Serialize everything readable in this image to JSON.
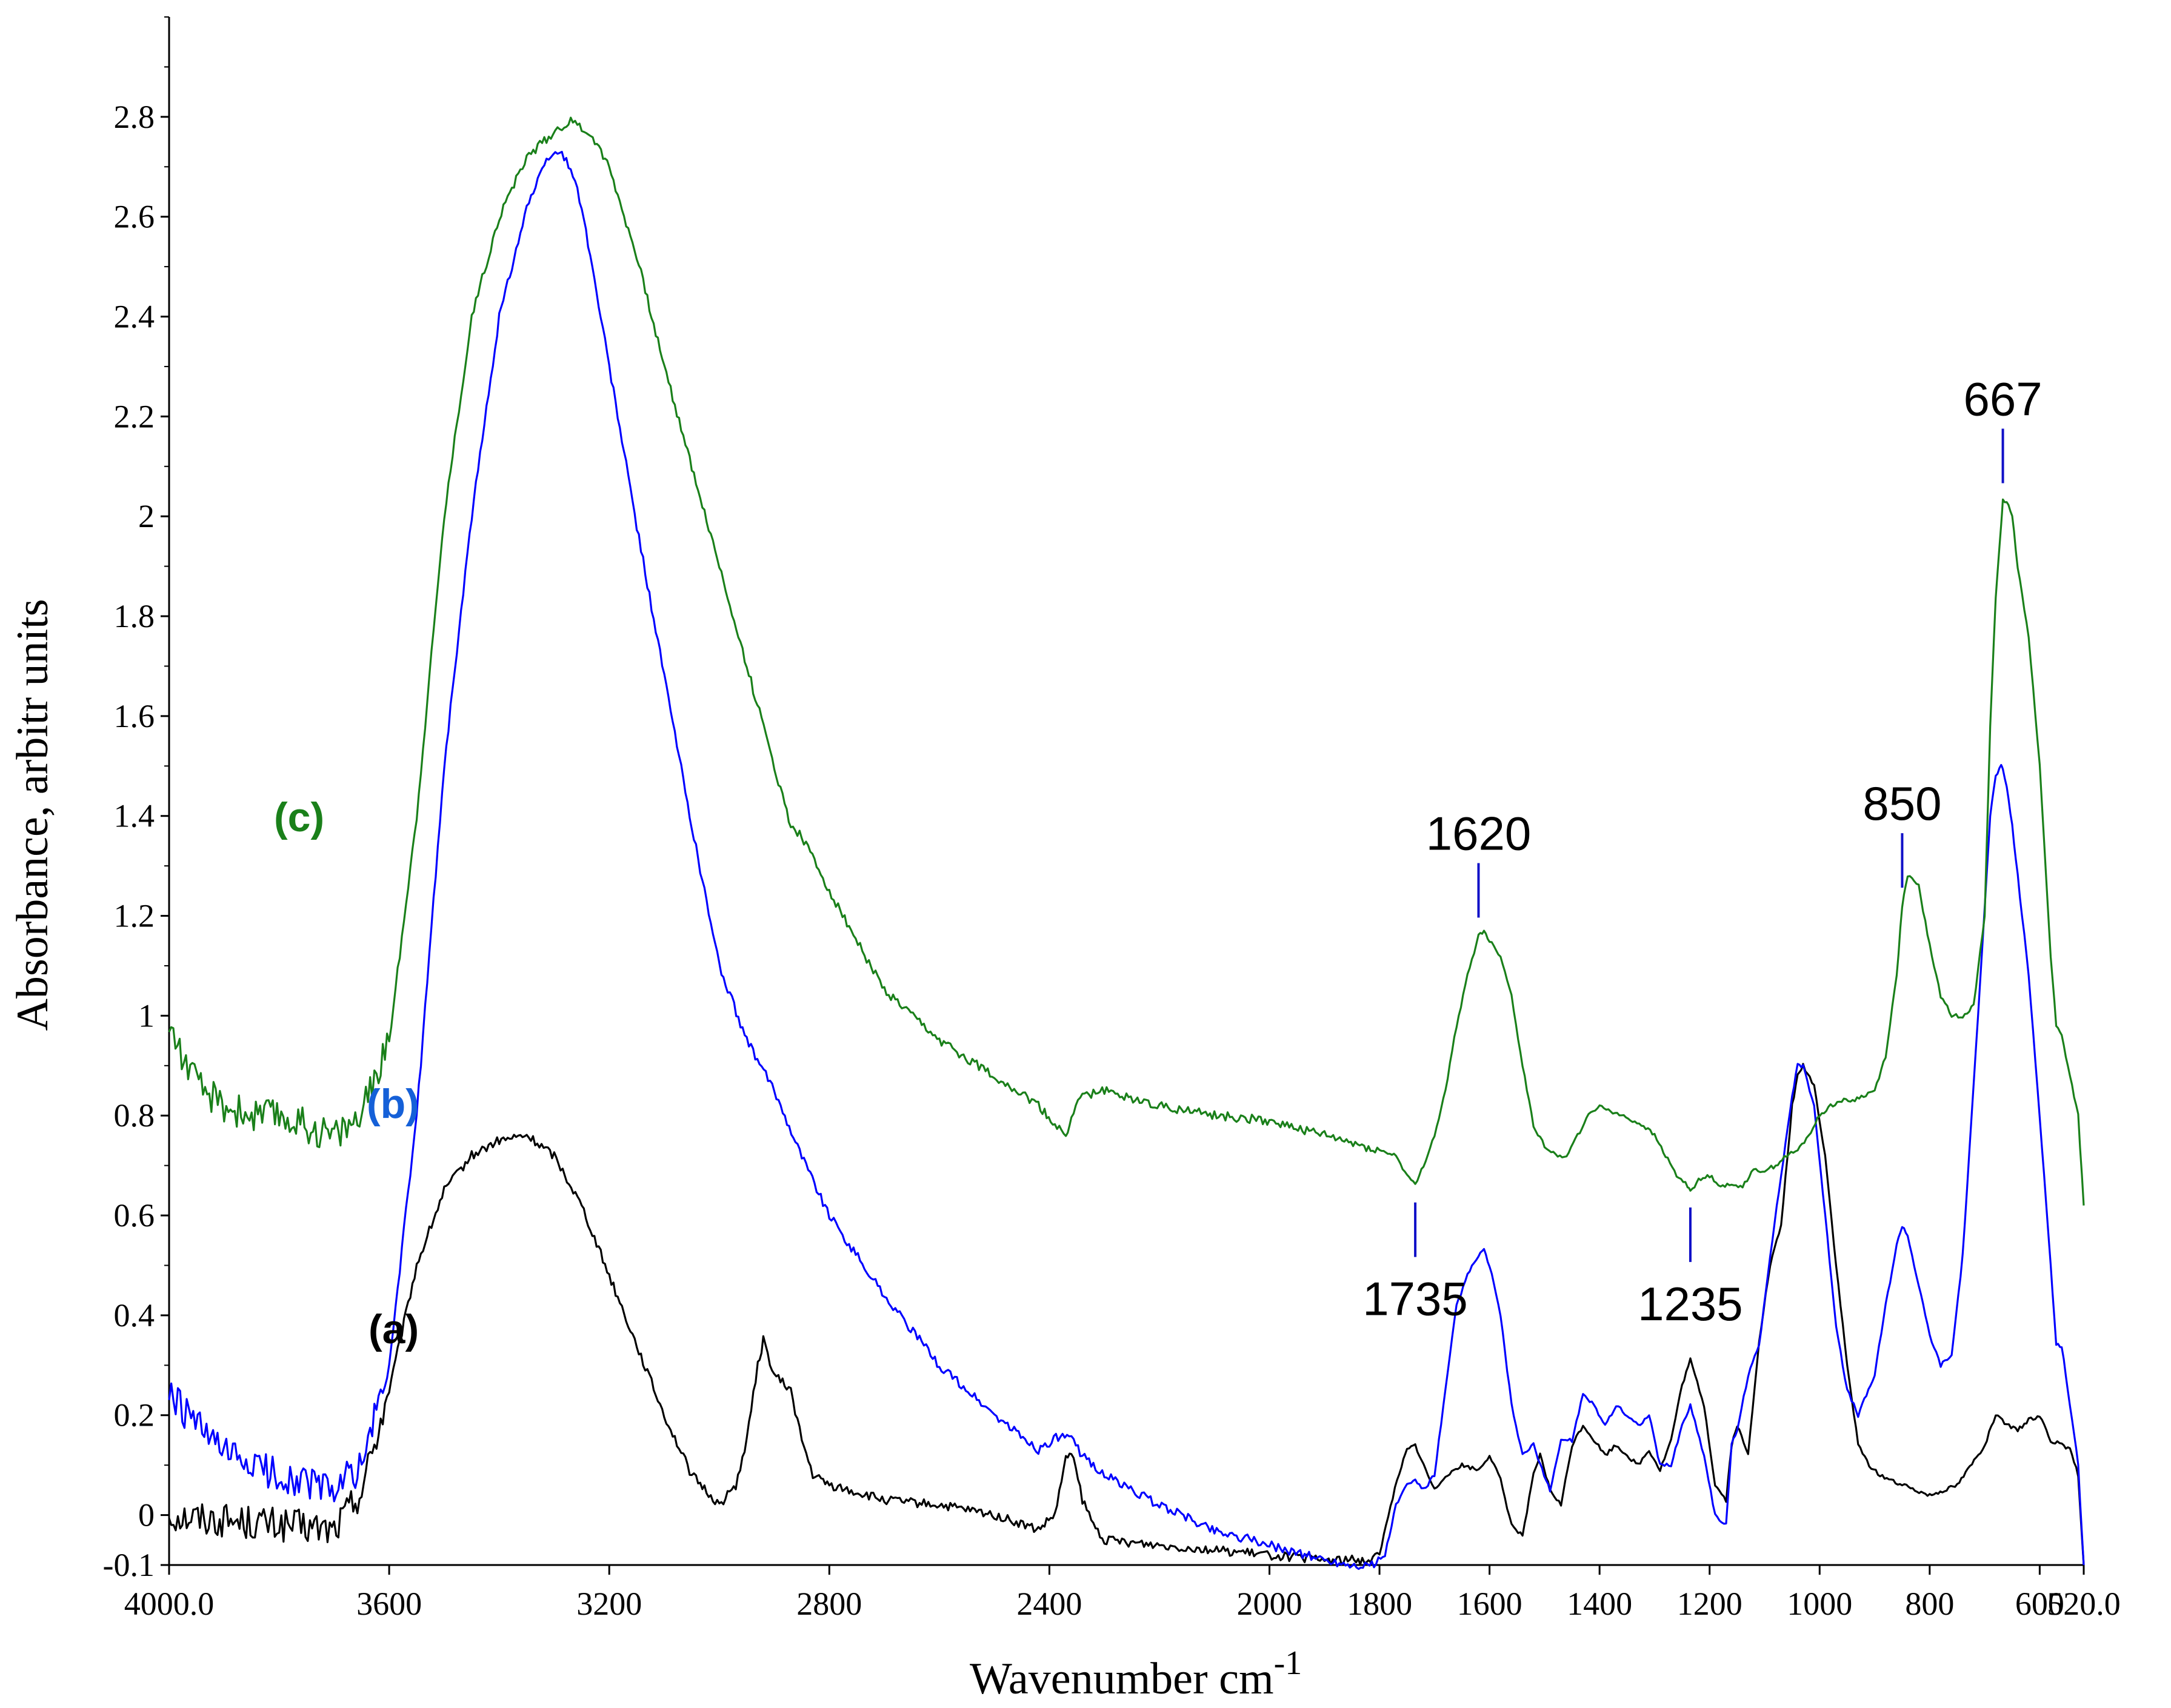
{
  "chart_data": {
    "type": "line",
    "title": "",
    "xlabel": "Wavenumber cm",
    "xlabel_superscript": "-1",
    "ylabel": "Absorbance, arbitr units",
    "xlim": [
      4000,
      520
    ],
    "ylim": [
      -0.1,
      3.0
    ],
    "x_reversed": true,
    "x_ticks": [
      4000,
      3600,
      3200,
      2800,
      2400,
      2000,
      1800,
      1600,
      1400,
      1200,
      1000,
      800,
      600,
      520
    ],
    "x_tick_labels": [
      "4000.0",
      "3600",
      "3200",
      "2800",
      "2400",
      "2000",
      "1800",
      "1600",
      "1400",
      "1200",
      "1000",
      "800",
      "600",
      "520.0"
    ],
    "y_ticks": [
      -0.1,
      0,
      0.2,
      0.4,
      0.6,
      0.8,
      1,
      1.2,
      1.4,
      1.6,
      1.8,
      2,
      2.2,
      2.4,
      2.6,
      2.8
    ],
    "y_tick_labels": [
      "-0.1",
      "0",
      "0.2",
      "0.4",
      "0.6",
      "0.8",
      "1",
      "1.2",
      "1.4",
      "1.6",
      "1.8",
      "2",
      "2.2",
      "2.4",
      "2.6",
      "2.8"
    ],
    "grid": false,
    "series": [
      {
        "name": "(a)",
        "color": "#000000",
        "x": [
          4000,
          3900,
          3800,
          3700,
          3650,
          3600,
          3550,
          3500,
          3450,
          3400,
          3350,
          3300,
          3250,
          3200,
          3150,
          3100,
          3050,
          3000,
          2970,
          2950,
          2930,
          2920,
          2900,
          2870,
          2850,
          2830,
          2800,
          2700,
          2600,
          2500,
          2420,
          2390,
          2370,
          2360,
          2340,
          2320,
          2300,
          2200,
          2100,
          2000,
          1900,
          1850,
          1820,
          1800,
          1780,
          1760,
          1750,
          1735,
          1720,
          1700,
          1680,
          1650,
          1620,
          1600,
          1580,
          1560,
          1540,
          1520,
          1508,
          1490,
          1470,
          1450,
          1430,
          1410,
          1390,
          1370,
          1350,
          1330,
          1310,
          1290,
          1270,
          1250,
          1235,
          1210,
          1190,
          1170,
          1160,
          1150,
          1130,
          1110,
          1090,
          1070,
          1050,
          1040,
          1030,
          1010,
          990,
          970,
          950,
          930,
          910,
          890,
          870,
          850,
          800,
          750,
          700,
          680,
          660,
          640,
          620,
          600,
          580,
          560,
          545,
          530,
          520
        ],
        "values": [
          0.0,
          -0.01,
          -0.02,
          -0.03,
          0.05,
          0.25,
          0.5,
          0.65,
          0.72,
          0.75,
          0.76,
          0.72,
          0.62,
          0.48,
          0.34,
          0.2,
          0.08,
          0.02,
          0.06,
          0.15,
          0.3,
          0.35,
          0.28,
          0.25,
          0.15,
          0.08,
          0.06,
          0.03,
          0.02,
          0.0,
          -0.03,
          0.0,
          0.11,
          0.13,
          0.03,
          -0.02,
          -0.05,
          -0.06,
          -0.07,
          -0.08,
          -0.09,
          -0.09,
          -0.09,
          -0.08,
          0.02,
          0.1,
          0.13,
          0.14,
          0.1,
          0.05,
          0.08,
          0.1,
          0.09,
          0.12,
          0.07,
          -0.02,
          -0.04,
          0.08,
          0.12,
          0.05,
          0.02,
          0.14,
          0.18,
          0.15,
          0.12,
          0.14,
          0.12,
          0.1,
          0.13,
          0.09,
          0.15,
          0.26,
          0.31,
          0.22,
          0.06,
          0.03,
          0.14,
          0.18,
          0.12,
          0.35,
          0.5,
          0.58,
          0.82,
          0.88,
          0.9,
          0.86,
          0.72,
          0.5,
          0.3,
          0.14,
          0.1,
          0.08,
          0.07,
          0.06,
          0.04,
          0.06,
          0.14,
          0.2,
          0.18,
          0.17,
          0.19,
          0.2,
          0.15,
          0.14,
          0.13,
          0.08,
          -0.1
        ]
      },
      {
        "name": "(b)",
        "color": "#0000ff",
        "x": [
          4000,
          3900,
          3800,
          3700,
          3650,
          3600,
          3550,
          3500,
          3450,
          3400,
          3350,
          3310,
          3290,
          3270,
          3250,
          3200,
          3150,
          3100,
          3050,
          3000,
          2950,
          2900,
          2850,
          2800,
          2700,
          2600,
          2500,
          2420,
          2380,
          2360,
          2340,
          2300,
          2200,
          2100,
          2000,
          1900,
          1850,
          1810,
          1790,
          1770,
          1750,
          1735,
          1720,
          1700,
          1680,
          1660,
          1640,
          1620,
          1610,
          1600,
          1580,
          1560,
          1540,
          1520,
          1508,
          1490,
          1470,
          1450,
          1430,
          1410,
          1390,
          1370,
          1350,
          1330,
          1310,
          1290,
          1270,
          1250,
          1235,
          1210,
          1190,
          1170,
          1160,
          1150,
          1130,
          1110,
          1090,
          1070,
          1050,
          1040,
          1030,
          1010,
          990,
          970,
          950,
          930,
          900,
          880,
          860,
          850,
          840,
          820,
          800,
          780,
          760,
          740,
          720,
          700,
          690,
          680,
          670,
          667,
          660,
          650,
          640,
          620,
          600,
          580,
          570,
          560,
          545,
          530,
          520
        ],
        "values": [
          0.24,
          0.12,
          0.08,
          0.05,
          0.1,
          0.3,
          0.8,
          1.5,
          2.0,
          2.4,
          2.62,
          2.72,
          2.73,
          2.7,
          2.62,
          2.3,
          1.98,
          1.68,
          1.38,
          1.1,
          0.95,
          0.85,
          0.72,
          0.6,
          0.44,
          0.3,
          0.2,
          0.13,
          0.16,
          0.15,
          0.12,
          0.08,
          0.02,
          -0.03,
          -0.06,
          -0.09,
          -0.1,
          -0.1,
          -0.08,
          0.02,
          0.06,
          0.07,
          0.05,
          0.08,
          0.25,
          0.42,
          0.48,
          0.52,
          0.53,
          0.5,
          0.4,
          0.22,
          0.12,
          0.14,
          0.1,
          0.05,
          0.15,
          0.15,
          0.24,
          0.22,
          0.18,
          0.22,
          0.2,
          0.18,
          0.2,
          0.1,
          0.1,
          0.18,
          0.22,
          0.12,
          0.0,
          -0.02,
          0.14,
          0.17,
          0.28,
          0.34,
          0.52,
          0.68,
          0.84,
          0.9,
          0.9,
          0.82,
          0.6,
          0.38,
          0.25,
          0.2,
          0.28,
          0.42,
          0.54,
          0.58,
          0.56,
          0.46,
          0.36,
          0.3,
          0.32,
          0.52,
          0.86,
          1.22,
          1.4,
          1.48,
          1.5,
          1.49,
          1.46,
          1.38,
          1.28,
          1.08,
          0.8,
          0.5,
          0.34,
          0.34,
          0.22,
          0.1,
          -0.1
        ]
      },
      {
        "name": "(c)",
        "color": "#1a801a",
        "x": [
          4000,
          3950,
          3900,
          3850,
          3800,
          3750,
          3700,
          3650,
          3600,
          3550,
          3500,
          3450,
          3400,
          3350,
          3310,
          3290,
          3270,
          3250,
          3230,
          3200,
          3150,
          3100,
          3050,
          3000,
          2950,
          2900,
          2870,
          2850,
          2800,
          2700,
          2600,
          2500,
          2420,
          2390,
          2370,
          2360,
          2340,
          2300,
          2200,
          2100,
          2000,
          1900,
          1800,
          1770,
          1750,
          1735,
          1720,
          1700,
          1680,
          1660,
          1640,
          1620,
          1610,
          1600,
          1580,
          1560,
          1540,
          1520,
          1500,
          1480,
          1460,
          1440,
          1420,
          1400,
          1380,
          1360,
          1340,
          1320,
          1300,
          1280,
          1260,
          1240,
          1235,
          1220,
          1200,
          1180,
          1160,
          1140,
          1120,
          1100,
          1080,
          1060,
          1040,
          1020,
          1000,
          980,
          960,
          940,
          920,
          900,
          880,
          860,
          850,
          840,
          820,
          800,
          780,
          760,
          740,
          720,
          700,
          690,
          680,
          670,
          667,
          660,
          650,
          640,
          620,
          600,
          580,
          570,
          560,
          545,
          530,
          520
        ],
        "values": [
          0.98,
          0.86,
          0.82,
          0.8,
          0.8,
          0.78,
          0.76,
          0.8,
          0.95,
          1.4,
          2.0,
          2.4,
          2.6,
          2.72,
          2.76,
          2.78,
          2.79,
          2.78,
          2.76,
          2.7,
          2.52,
          2.3,
          2.1,
          1.9,
          1.7,
          1.5,
          1.38,
          1.36,
          1.25,
          1.05,
          0.95,
          0.88,
          0.82,
          0.78,
          0.76,
          0.8,
          0.84,
          0.85,
          0.82,
          0.8,
          0.79,
          0.76,
          0.73,
          0.72,
          0.68,
          0.66,
          0.7,
          0.76,
          0.85,
          0.98,
          1.08,
          1.16,
          1.17,
          1.15,
          1.12,
          1.04,
          0.9,
          0.78,
          0.74,
          0.72,
          0.72,
          0.76,
          0.8,
          0.82,
          0.81,
          0.8,
          0.79,
          0.78,
          0.76,
          0.72,
          0.68,
          0.66,
          0.65,
          0.67,
          0.68,
          0.66,
          0.66,
          0.66,
          0.69,
          0.69,
          0.7,
          0.72,
          0.73,
          0.76,
          0.8,
          0.82,
          0.83,
          0.83,
          0.84,
          0.85,
          0.92,
          1.08,
          1.22,
          1.28,
          1.26,
          1.14,
          1.04,
          1.0,
          1.0,
          1.02,
          1.2,
          1.58,
          1.84,
          1.98,
          2.03,
          2.03,
          2.0,
          1.9,
          1.76,
          1.5,
          1.12,
          0.98,
          0.96,
          0.88,
          0.8,
          0.62
        ]
      }
    ],
    "series_labels": {
      "a": "(a)",
      "b": "(b)",
      "c": "(c)"
    },
    "annotations": [
      {
        "label": "1620",
        "x": 1620,
        "series": "(c)",
        "position": "above"
      },
      {
        "label": "1735",
        "x": 1735,
        "series": "(c)",
        "position": "below"
      },
      {
        "label": "1235",
        "x": 1235,
        "series": "(c)",
        "position": "below"
      },
      {
        "label": "850",
        "x": 850,
        "series": "(c)",
        "position": "above"
      },
      {
        "label": "667",
        "x": 667,
        "series": "(c)",
        "position": "above"
      }
    ]
  }
}
